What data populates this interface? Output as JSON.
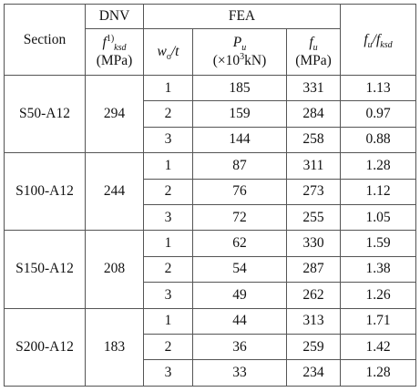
{
  "header": {
    "section": "Section",
    "dnv": "DNV",
    "fea": "FEA",
    "ratio_main": "f",
    "ratio_sub1": "u",
    "ratio_sep": "/f",
    "ratio_sub2": "ksd",
    "fksd_main": "f",
    "fksd_sup": "1)",
    "fksd_sub": "ksd",
    "fksd_unit": "(MPa)",
    "wot_main": "w",
    "wot_sub": "o",
    "wot_tail": "/t",
    "pu_main": "P",
    "pu_sub": "u",
    "pu_unit_pre": "(×10",
    "pu_unit_sup": "3",
    "pu_unit_post": "kN)",
    "fu_main": "f",
    "fu_sub": "u",
    "fu_unit": "(MPa)"
  },
  "groups": [
    {
      "section": "S50-A12",
      "fksd": "294",
      "rows": [
        {
          "wot": "1",
          "pu": "185",
          "fu": "331",
          "ratio": "1.13"
        },
        {
          "wot": "2",
          "pu": "159",
          "fu": "284",
          "ratio": "0.97"
        },
        {
          "wot": "3",
          "pu": "144",
          "fu": "258",
          "ratio": "0.88"
        }
      ]
    },
    {
      "section": "S100-A12",
      "fksd": "244",
      "rows": [
        {
          "wot": "1",
          "pu": "87",
          "fu": "311",
          "ratio": "1.28"
        },
        {
          "wot": "2",
          "pu": "76",
          "fu": "273",
          "ratio": "1.12"
        },
        {
          "wot": "3",
          "pu": "72",
          "fu": "255",
          "ratio": "1.05"
        }
      ]
    },
    {
      "section": "S150-A12",
      "fksd": "208",
      "rows": [
        {
          "wot": "1",
          "pu": "62",
          "fu": "330",
          "ratio": "1.59"
        },
        {
          "wot": "2",
          "pu": "54",
          "fu": "287",
          "ratio": "1.38"
        },
        {
          "wot": "3",
          "pu": "49",
          "fu": "262",
          "ratio": "1.26"
        }
      ]
    },
    {
      "section": "S200-A12",
      "fksd": "183",
      "rows": [
        {
          "wot": "1",
          "pu": "44",
          "fu": "313",
          "ratio": "1.71"
        },
        {
          "wot": "2",
          "pu": "36",
          "fu": "259",
          "ratio": "1.42"
        },
        {
          "wot": "3",
          "pu": "33",
          "fu": "234",
          "ratio": "1.28"
        }
      ]
    }
  ]
}
